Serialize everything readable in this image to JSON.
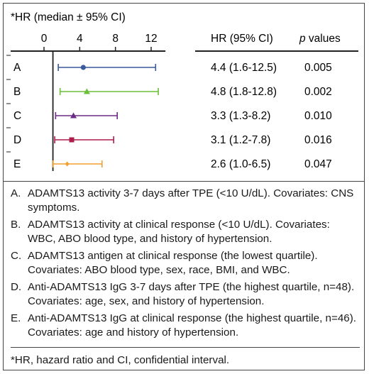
{
  "chart_data": {
    "type": "forest",
    "axis_label": "*HR (median ± 95% CI)",
    "xticks": [
      0,
      4,
      8,
      12
    ],
    "xlim": [
      0,
      13.6
    ],
    "reference_line": 1,
    "table_headers": {
      "hr": "HR (95% CI)",
      "p": "p values"
    },
    "rows": [
      {
        "label": "A",
        "hr": 4.4,
        "low": 1.6,
        "high": 12.5,
        "hr_text": "4.4 (1.6-12.5)",
        "p": "0.005",
        "color": "#3a5a9c",
        "marker": "circle"
      },
      {
        "label": "B",
        "hr": 4.8,
        "low": 1.8,
        "high": 12.8,
        "hr_text": "4.8 (1.8-12.8)",
        "p": "0.002",
        "color": "#6bbf3a",
        "marker": "triangle"
      },
      {
        "label": "C",
        "hr": 3.3,
        "low": 1.3,
        "high": 8.2,
        "hr_text": "3.3 (1.3-8.2)",
        "p": "0.010",
        "color": "#6a2c86",
        "marker": "triangle"
      },
      {
        "label": "D",
        "hr": 3.1,
        "low": 1.2,
        "high": 7.8,
        "hr_text": "3.1 (1.2-7.8)",
        "p": "0.016",
        "color": "#b01c4a",
        "marker": "square"
      },
      {
        "label": "E",
        "hr": 2.6,
        "low": 1.0,
        "high": 6.5,
        "hr_text": "2.6 (1.0-6.5)",
        "p": "0.047",
        "color": "#f0a030",
        "marker": "diamond"
      }
    ]
  },
  "notes": [
    {
      "letter": "A.",
      "text": "ADAMTS13 activity 3-7 days after TPE (<10 U/dL). Covariates: CNS symptoms."
    },
    {
      "letter": "B.",
      "text": "ADAMTS13 activity at clinical response (<10 U/dL). Covariates: WBC, ABO blood type, and history of hypertension."
    },
    {
      "letter": "C.",
      "text": "ADAMTS13 antigen at clinical response (the lowest quartile). Covariates: ABO blood type, sex, race, BMI, and WBC."
    },
    {
      "letter": "D.",
      "text": "Anti-ADAMTS13 IgG 3-7 days after TPE (the highest quartile, n=48). Covariates: age, sex, and history of hypertension."
    },
    {
      "letter": "E.",
      "text": "Anti-ADAMTS13 IgG at clinical response (the highest quartile, n=46). Covariates: age and history of hypertension."
    }
  ],
  "footnote": "*HR, hazard ratio and CI, confidential interval."
}
